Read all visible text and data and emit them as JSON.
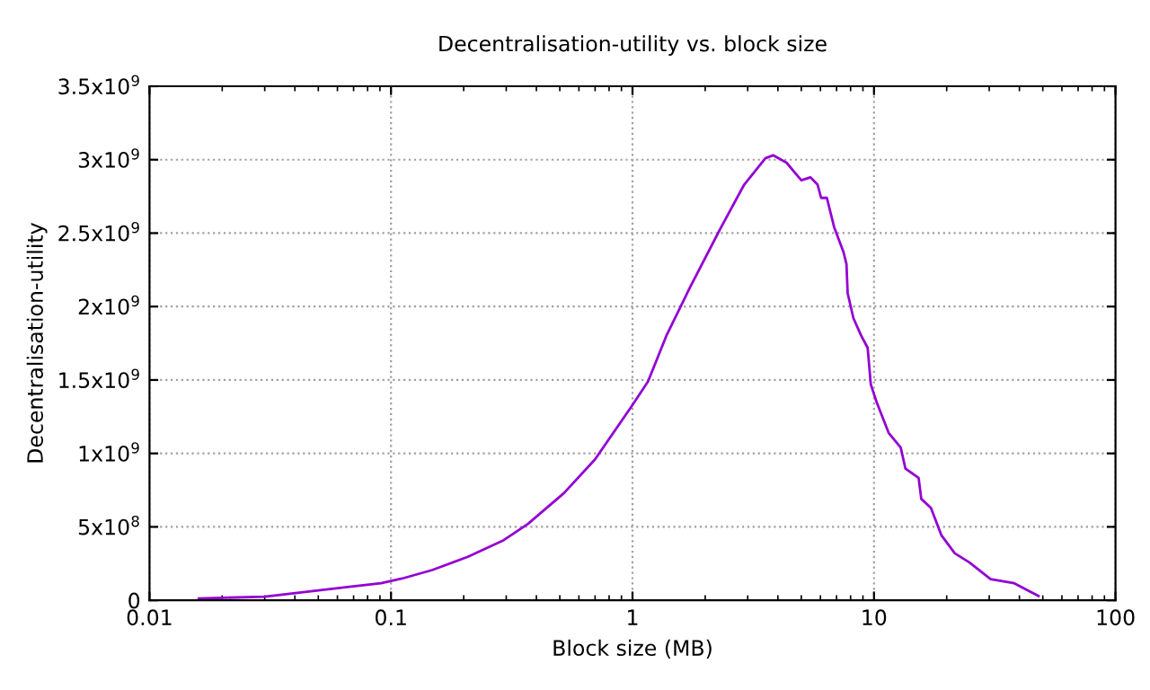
{
  "chart_data": {
    "type": "line",
    "title": "Decentralisation-utility vs. block size",
    "xlabel": "Block size (MB)",
    "ylabel": "Decentralisation-utility",
    "log": "x",
    "grid": true,
    "line_style": "solid",
    "marker": "none",
    "xlim": [
      0.01,
      100
    ],
    "xticks": [
      0.01,
      0.1,
      1,
      10,
      100
    ],
    "ylim": [
      0,
      3500000000
    ],
    "yticks": [
      0,
      {
        "value": 500000000,
        "label": "5x10$^{8}$"
      },
      {
        "value": 1000000000,
        "label": "1x10$^{9}$"
      },
      {
        "value": 1500000000,
        "label": "1.5x10$^{9}$"
      },
      {
        "value": 2000000000,
        "label": "2x10$^{9}$"
      },
      {
        "value": 2500000000,
        "label": "2.5x10$^{9}$"
      },
      {
        "value": 3000000000,
        "label": "3x10$^{9}$"
      },
      {
        "value": 3500000000,
        "label": "3.5x10$^{9}$"
      }
    ],
    "series": [
      {
        "color": "#9400d3",
        "x": [
          0.016,
          0.03,
          0.066,
          0.091,
          0.111,
          0.148,
          0.208,
          0.293,
          0.369,
          0.52,
          0.7,
          1.0,
          1.16,
          1.38,
          1.73,
          2.31,
          2.9,
          3.55,
          3.82,
          4.34,
          5.0,
          5.46,
          5.84,
          6.04,
          6.38,
          6.84,
          7.48,
          7.69,
          7.78,
          8.22,
          8.86,
          9.41,
          9.7,
          10.25,
          11.5,
          12.9,
          13.5,
          15.3,
          15.7,
          17.2,
          19.0,
          21.6,
          24.8,
          30.4,
          38.1,
          48
        ],
        "values": [
          12000000,
          25000000,
          91000000,
          116000000,
          148000000,
          206000000,
          296000000,
          410000000,
          520000000,
          730000000,
          960000000,
          1330000000,
          1490000000,
          1800000000,
          2130000000,
          2530000000,
          2830000000,
          3010000000,
          3030000000,
          2980000000,
          2860000000,
          2880000000,
          2830000000,
          2740000000,
          2740000000,
          2540000000,
          2370000000,
          2290000000,
          2090000000,
          1920000000,
          1800000000,
          1720000000,
          1470000000,
          1350000000,
          1140000000,
          1040000000,
          896000000,
          834000000,
          690000000,
          630000000,
          444000000,
          320000000,
          259000000,
          144000000,
          116000000,
          30000000
        ]
      }
    ]
  }
}
